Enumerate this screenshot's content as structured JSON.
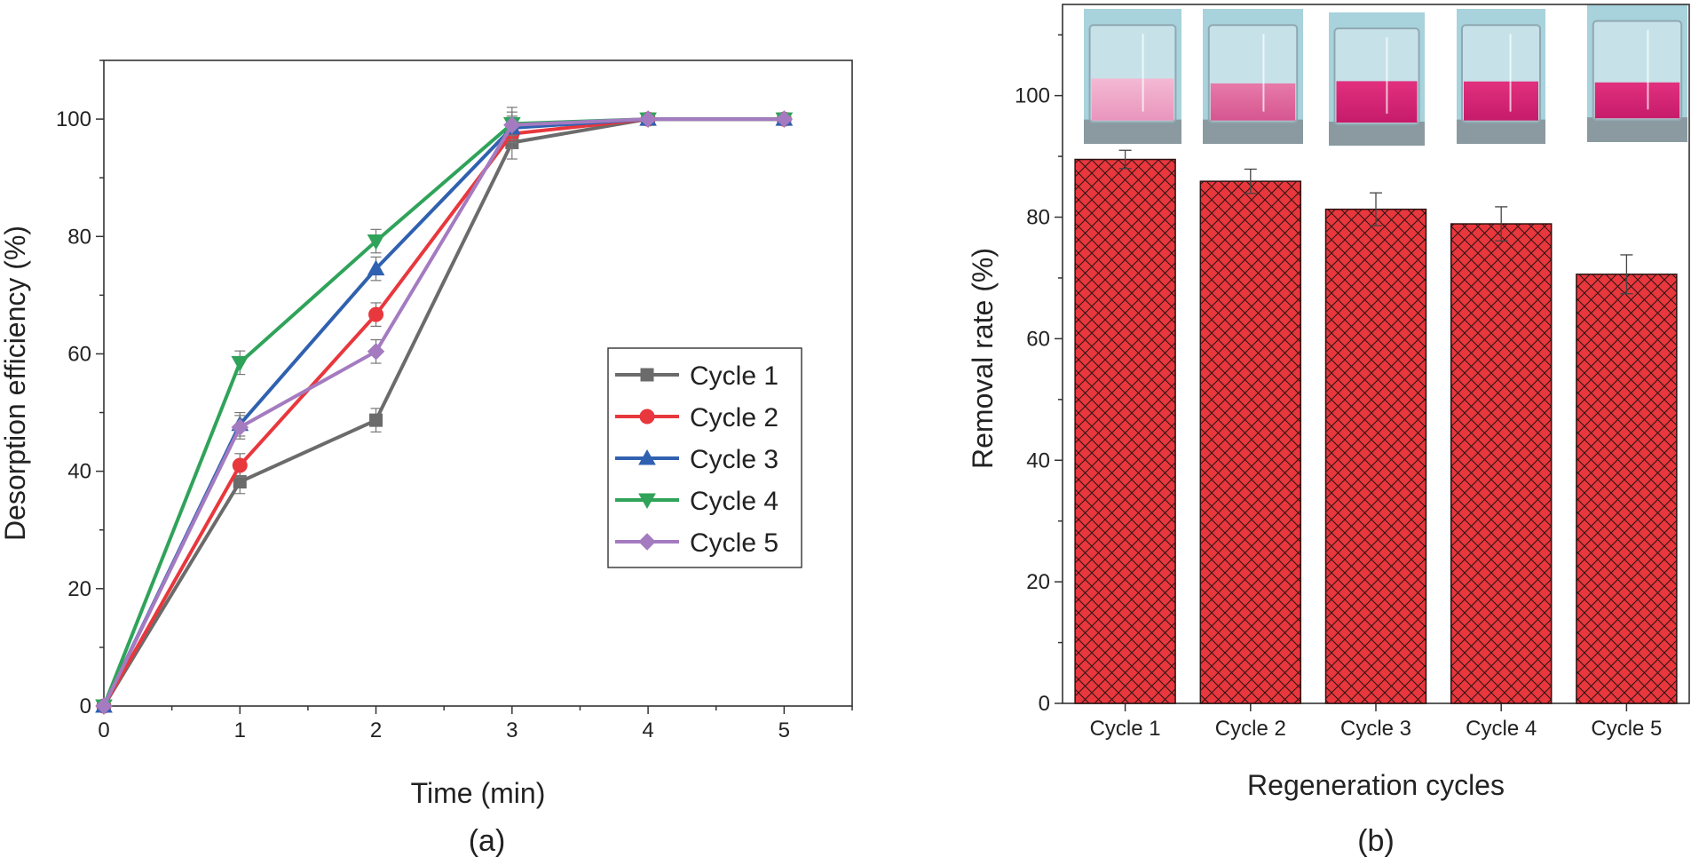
{
  "chart_data": [
    {
      "type": "line",
      "panel": "(a)",
      "xlabel": "Time (min)",
      "ylabel": "Desorption efficiency (%)",
      "xlim": [
        0,
        5.5
      ],
      "ylim": [
        0,
        110
      ],
      "xticks": [
        0,
        1,
        2,
        3,
        4,
        5
      ],
      "yticks": [
        0,
        20,
        40,
        60,
        80,
        100
      ],
      "x": [
        0,
        1,
        2,
        3,
        4,
        5
      ],
      "legend_position": "center-right",
      "series": [
        {
          "name": "Cycle 1",
          "color": "#6b6b6b",
          "marker": "square",
          "values": [
            0,
            38.2,
            48.7,
            96.0,
            100,
            100
          ],
          "errors": [
            0,
            2.0,
            2.0,
            2.8,
            0.5,
            0.5
          ]
        },
        {
          "name": "Cycle 2",
          "color": "#e8373d",
          "marker": "circle",
          "values": [
            0,
            41.0,
            66.7,
            97.5,
            100,
            100
          ],
          "errors": [
            0,
            2.0,
            2.0,
            2.5,
            0.5,
            0.5
          ]
        },
        {
          "name": "Cycle 3",
          "color": "#3061b0",
          "marker": "triangle-up",
          "values": [
            0,
            48.0,
            74.5,
            98.5,
            100,
            100
          ],
          "errors": [
            0,
            2.0,
            2.0,
            2.0,
            0.5,
            0.5
          ]
        },
        {
          "name": "Cycle 4",
          "color": "#2fa35a",
          "marker": "triangle-down",
          "values": [
            0,
            58.5,
            79.2,
            99.2,
            100,
            100
          ],
          "errors": [
            0,
            2.0,
            2.0,
            2.0,
            0.5,
            0.5
          ]
        },
        {
          "name": "Cycle 5",
          "color": "#a47bc0",
          "marker": "diamond",
          "values": [
            0,
            47.5,
            60.4,
            99.0,
            100,
            100
          ],
          "errors": [
            0,
            2.0,
            2.0,
            3.0,
            0.5,
            0.5
          ]
        }
      ]
    },
    {
      "type": "bar",
      "panel": "(b)",
      "xlabel": "Regeneration cycles",
      "ylabel": "Removal rate (%)",
      "ylim": [
        0,
        115
      ],
      "yticks": [
        0,
        20,
        40,
        60,
        80,
        100
      ],
      "categories": [
        "Cycle 1",
        "Cycle 2",
        "Cycle 3",
        "Cycle 4",
        "Cycle 5"
      ],
      "values": [
        89.5,
        85.9,
        81.3,
        78.9,
        70.6
      ],
      "errors": [
        1.5,
        2.0,
        2.7,
        2.8,
        3.2
      ],
      "bar_color": "#e8373d",
      "hatch": "crosshatch",
      "inset_images": "beaker photos of pink solution above each bar"
    }
  ]
}
